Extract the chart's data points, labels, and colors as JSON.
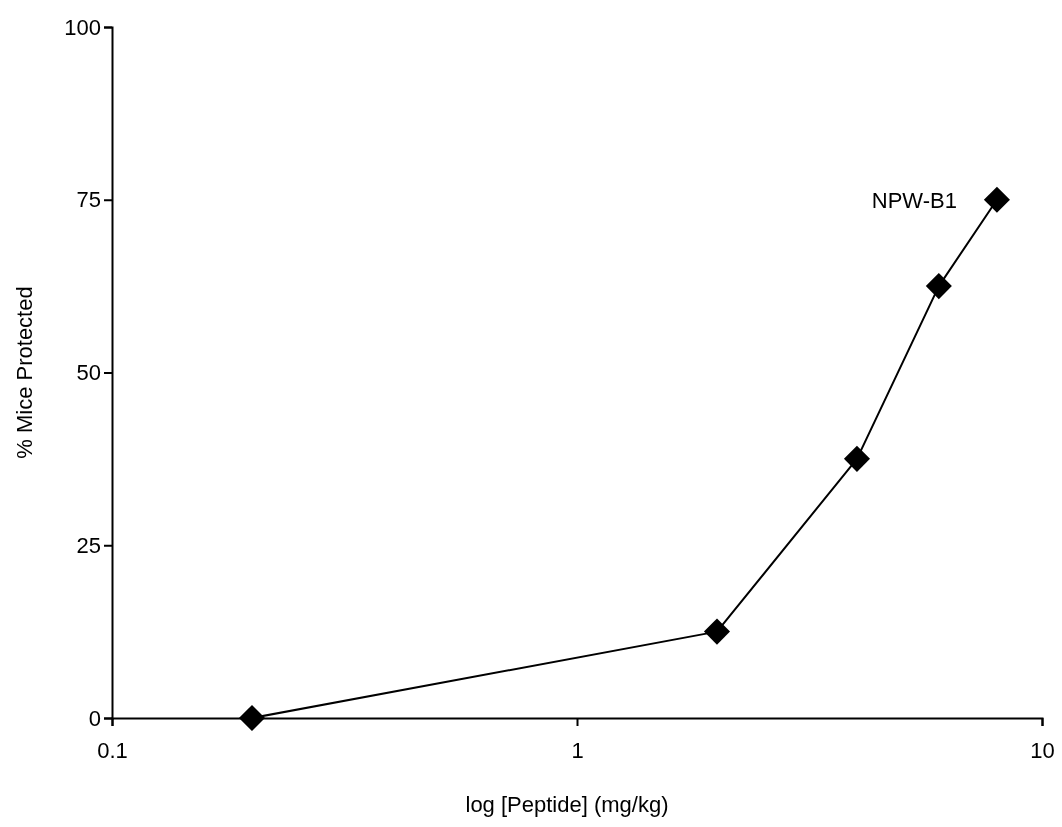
{
  "chart_data": {
    "type": "line",
    "xlabel": "log [Peptide] (mg/kg)",
    "ylabel": "% Mice Protected",
    "x": [
      0.2,
      2,
      4,
      6,
      8
    ],
    "series": [
      {
        "name": "NPW-B1",
        "color": "#000000",
        "values": [
          0,
          12.5,
          37.5,
          62.5,
          75
        ]
      }
    ],
    "xlim": [
      0.1,
      10
    ],
    "xticks": [
      0.1,
      1,
      10
    ],
    "ylim": [
      0,
      100
    ],
    "yticks": [
      0,
      25,
      50,
      75,
      100
    ],
    "log": "x",
    "marker": "diamond",
    "line_style": "solid",
    "grid": false
  }
}
